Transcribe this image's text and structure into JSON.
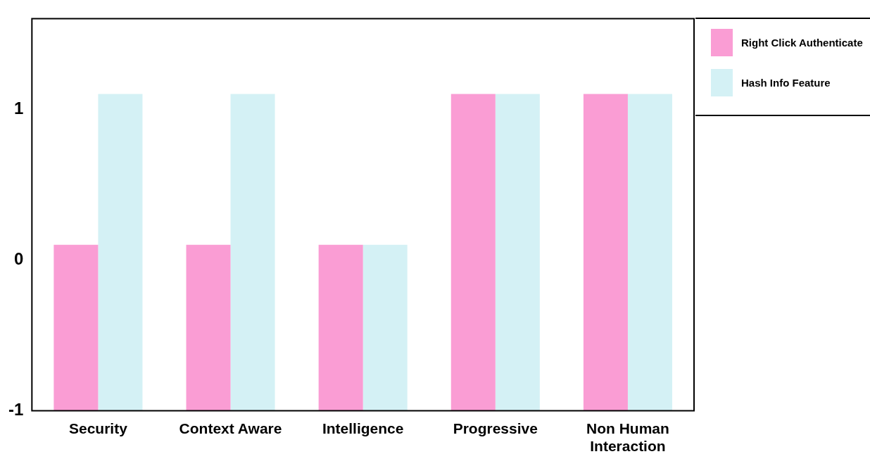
{
  "chart_data": {
    "type": "bar",
    "categories": [
      "Security",
      "Context Aware",
      "Intelligence",
      "Progressive",
      "Non Human Interaction"
    ],
    "series": [
      {
        "name": "Right Click Authenticate",
        "color": "#fa9dd4",
        "base": [
          -1,
          -1,
          -1,
          -1,
          -1
        ],
        "values": [
          1.1,
          1.1,
          1.1,
          2.1,
          2.1
        ]
      },
      {
        "name": "Hash Info Feature",
        "color": "#d4f1f5",
        "base": [
          -1,
          -1,
          -1,
          -1,
          -1
        ],
        "values": [
          2.1,
          2.1,
          1.1,
          2.1,
          2.1
        ]
      }
    ],
    "ylim": [
      -1,
      1.6
    ],
    "yticks": [
      -1,
      0,
      1
    ],
    "grid": false,
    "legend": "top right"
  }
}
